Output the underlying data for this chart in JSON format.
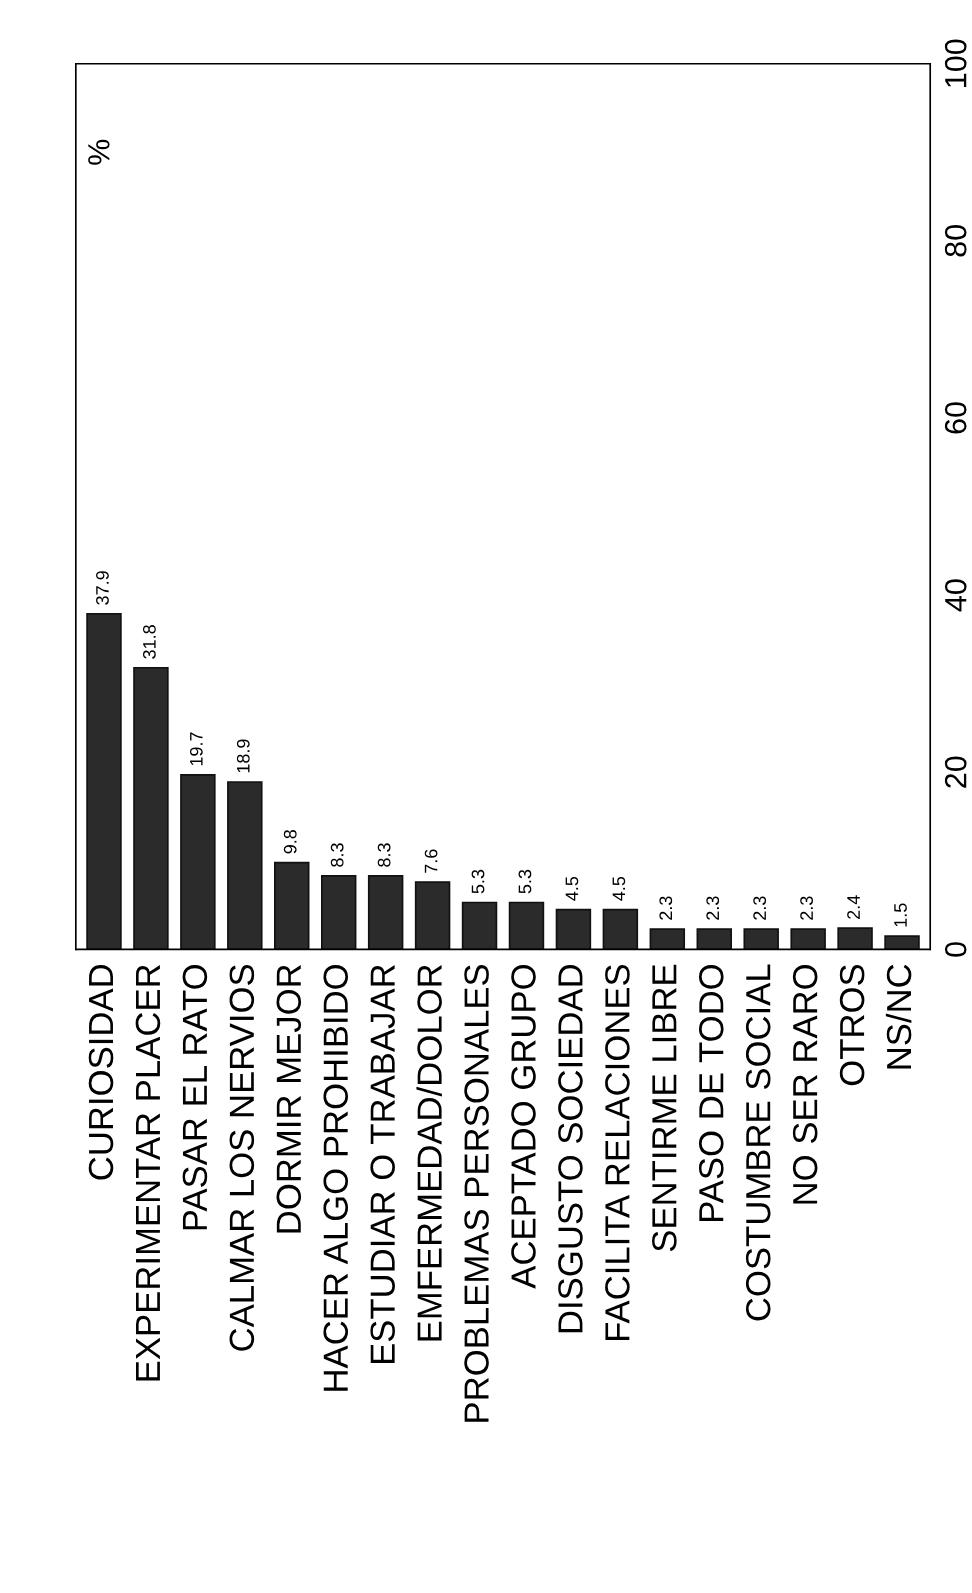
{
  "chart_data": {
    "type": "bar",
    "ylabel": "%",
    "categories": [
      "CURIOSIDAD",
      "EXPERIMENTAR PLACER",
      "PASAR EL RATO",
      "CALMAR LOS NERVIOS",
      "DORMIR MEJOR",
      "HACER ALGO PROHIBIDO",
      "ESTUDIAR O TRABAJAR",
      "EMFERMEDAD/DOLOR",
      "PROBLEMAS PERSONALES",
      "ACEPTADO GRUPO",
      "DISGUSTO SOCIEDAD",
      "FACILITA RELACIONES",
      "SENTIRME LIBRE",
      "PASO DE TODO",
      "COSTUMBRE SOCIAL",
      "NO SER RARO",
      "OTROS",
      "NS/NC"
    ],
    "values": [
      37.9,
      31.8,
      19.7,
      18.9,
      9.8,
      8.3,
      8.3,
      7.6,
      5.3,
      5.3,
      4.5,
      4.5,
      2.3,
      2.3,
      2.3,
      2.3,
      2.4,
      1.5
    ],
    "color": "#2b2b2b",
    "ylim": [
      0,
      100
    ],
    "yticks": [
      0,
      20,
      40,
      60,
      80,
      100
    ],
    "grid": false,
    "data_labels": true
  }
}
